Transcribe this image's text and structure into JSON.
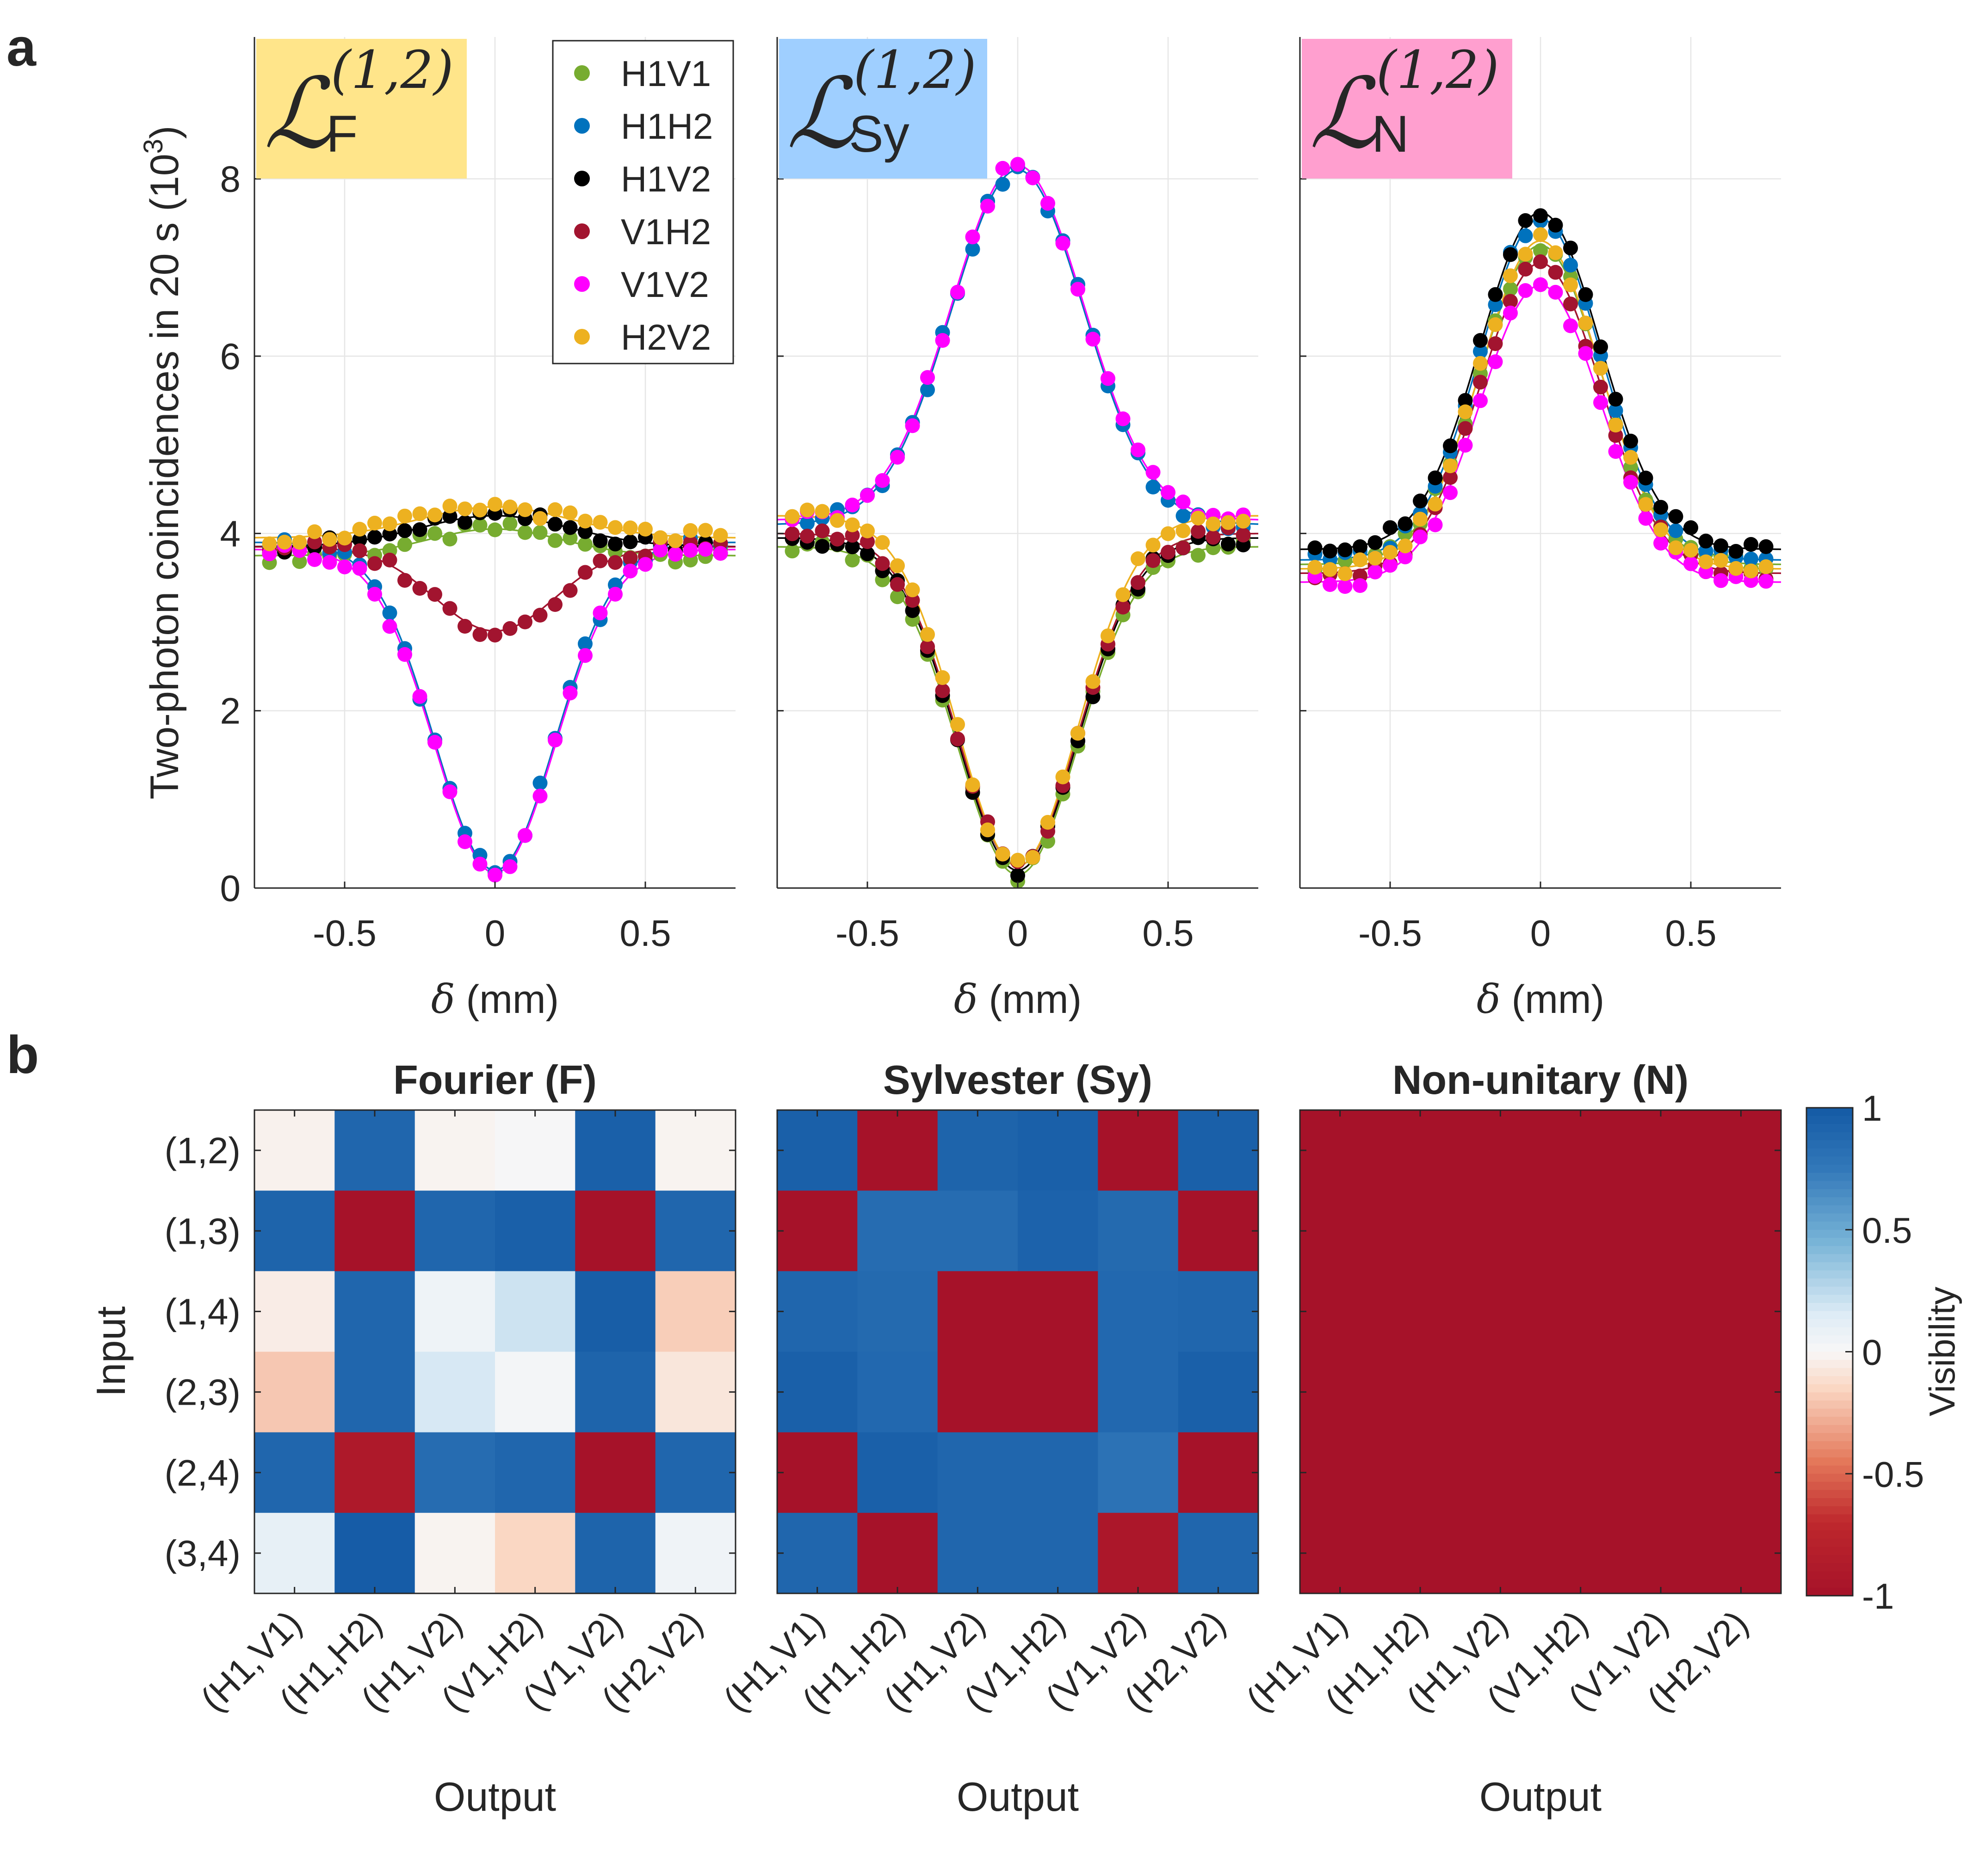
{
  "panel_labels": {
    "a": "a",
    "b": "b"
  },
  "colors": {
    "H1V1": "#77ac30",
    "H1H2": "#0072bd",
    "H1V2": "#000000",
    "V1H2": "#a2142f",
    "V1V2": "#ff00ff",
    "H2V2": "#edb120"
  },
  "chart_data": [
    {
      "type": "scatter",
      "panel": "a",
      "tag_text": {
        "symbol": "ℒ",
        "superscript": "(1,2)"
      },
      "ylabel": "Two-photon coincidences in 20 s (10",
      "ylabel_sup": "3",
      "ylabel_close": ")",
      "xlabel_sym": "δ",
      "xlabel_unit": " (mm)",
      "xlim": [
        -0.8,
        0.8
      ],
      "ylim": [
        0,
        9.6
      ],
      "xticks": [
        -0.5,
        0,
        0.5
      ],
      "xtick_labels": [
        "-0.5",
        "0",
        "0.5"
      ],
      "yticks": [
        0,
        2,
        4,
        6,
        8
      ],
      "ytick_labels": [
        "0",
        "2",
        "4",
        "6",
        "8"
      ],
      "legend": [
        "H1V1",
        "H1H2",
        "H1V2",
        "V1H2",
        "V1V2",
        "H2V2"
      ],
      "x": [
        -0.75,
        -0.7,
        -0.65,
        -0.6,
        -0.55,
        -0.5,
        -0.45,
        -0.4,
        -0.35,
        -0.3,
        -0.25,
        -0.2,
        -0.15,
        -0.1,
        -0.05,
        0.0,
        0.05,
        0.1,
        0.15,
        0.2,
        0.25,
        0.3,
        0.35,
        0.4,
        0.45,
        0.5,
        0.55,
        0.6,
        0.65,
        0.7,
        0.75
      ],
      "subplots": [
        {
          "tag": "F",
          "tag_color": "#ffe58a",
          "series": [
            {
              "name": "H1V1",
              "baseline": 3.75,
              "amp": 0.3,
              "width": 0.22
            },
            {
              "name": "H1H2",
              "baseline": 3.9,
              "amp": -3.7,
              "width": 0.2
            },
            {
              "name": "H1V2",
              "baseline": 3.85,
              "amp": 0.35,
              "width": 0.25
            },
            {
              "name": "V1H2",
              "baseline": 3.85,
              "amp": -0.95,
              "width": 0.2
            },
            {
              "name": "V1V2",
              "baseline": 3.82,
              "amp": -3.65,
              "width": 0.2
            },
            {
              "name": "H2V2",
              "baseline": 3.95,
              "amp": 0.35,
              "width": 0.25
            }
          ]
        },
        {
          "tag": "Sy",
          "tag_color": "#9fcfff",
          "series": [
            {
              "name": "H1V1",
              "baseline": 3.85,
              "amp": -3.7,
              "width": 0.2
            },
            {
              "name": "H1H2",
              "baseline": 4.1,
              "amp": 4.0,
              "width": 0.22
            },
            {
              "name": "H1V2",
              "baseline": 3.95,
              "amp": -3.75,
              "width": 0.2
            },
            {
              "name": "V1H2",
              "baseline": 4.0,
              "amp": -3.75,
              "width": 0.2
            },
            {
              "name": "V1V2",
              "baseline": 4.15,
              "amp": 4.0,
              "width": 0.22
            },
            {
              "name": "H2V2",
              "baseline": 4.2,
              "amp": -3.95,
              "width": 0.2
            }
          ]
        },
        {
          "tag": "N",
          "tag_color": "#ff9fcf",
          "series": [
            {
              "name": "H1V1",
              "baseline": 3.65,
              "amp": 3.6,
              "width": 0.2
            },
            {
              "name": "H1H2",
              "baseline": 3.7,
              "amp": 3.85,
              "width": 0.2
            },
            {
              "name": "H1V2",
              "baseline": 3.82,
              "amp": 3.8,
              "width": 0.2
            },
            {
              "name": "V1H2",
              "baseline": 3.55,
              "amp": 3.5,
              "width": 0.2
            },
            {
              "name": "V1V2",
              "baseline": 3.45,
              "amp": 3.35,
              "width": 0.2
            },
            {
              "name": "H2V2",
              "baseline": 3.6,
              "amp": 3.7,
              "width": 0.2
            }
          ]
        }
      ]
    },
    {
      "type": "heatmap",
      "panel": "b",
      "ylabel": "Input",
      "xlabel": "Output",
      "rows": [
        "(1,2)",
        "(1,3)",
        "(1,4)",
        "(2,3)",
        "(2,4)",
        "(3,4)"
      ],
      "cols": [
        "(H1,V1)",
        "(H1,H2)",
        "(H1,V2)",
        "(V1,H2)",
        "(V1,V2)",
        "(H2,V2)"
      ],
      "colorbar": {
        "label": "Visibility",
        "range": [
          -1,
          1
        ],
        "ticks": [
          1,
          0.5,
          0,
          -0.5,
          -1
        ],
        "tick_labels": [
          "1",
          "0.5",
          "0",
          "-0.5",
          "-1"
        ]
      },
      "matrices": [
        {
          "title": "Fourier (F)",
          "values": [
            [
              -0.03,
              0.9,
              -0.02,
              0.01,
              0.95,
              -0.02
            ],
            [
              0.92,
              -1.0,
              0.9,
              0.95,
              -1.0,
              0.9
            ],
            [
              -0.05,
              0.9,
              0.06,
              0.2,
              0.97,
              -0.18
            ],
            [
              -0.2,
              0.9,
              0.17,
              0.03,
              0.92,
              -0.08
            ],
            [
              0.9,
              -0.9,
              0.85,
              0.9,
              -1.0,
              0.9
            ],
            [
              0.1,
              0.98,
              -0.02,
              -0.15,
              0.92,
              0.05
            ]
          ]
        },
        {
          "title": "Sylvester (Sy)",
          "values": [
            [
              0.95,
              -1.0,
              0.92,
              0.95,
              -1.0,
              0.95
            ],
            [
              -1.0,
              0.85,
              0.85,
              0.93,
              0.87,
              -1.0
            ],
            [
              0.9,
              0.87,
              -1.0,
              -1.0,
              0.88,
              0.9
            ],
            [
              0.95,
              0.88,
              -1.0,
              -1.0,
              0.88,
              0.95
            ],
            [
              -1.0,
              0.95,
              0.9,
              0.9,
              0.8,
              -1.0
            ],
            [
              0.9,
              -1.0,
              0.9,
              0.9,
              -0.93,
              0.9
            ]
          ]
        },
        {
          "title": "Non-unitary (N)",
          "values": [
            [
              -1,
              -1,
              -1,
              -1,
              -1,
              -1
            ],
            [
              -1,
              -1,
              -1,
              -1,
              -1,
              -1
            ],
            [
              -1,
              -1,
              -1,
              -1,
              -1,
              -1
            ],
            [
              -1,
              -1,
              -1,
              -1,
              -1,
              -1
            ],
            [
              -1,
              -1,
              -1,
              -1,
              -1,
              -1
            ],
            [
              -1,
              -1,
              -1,
              -1,
              -1,
              -1
            ]
          ]
        }
      ]
    }
  ]
}
